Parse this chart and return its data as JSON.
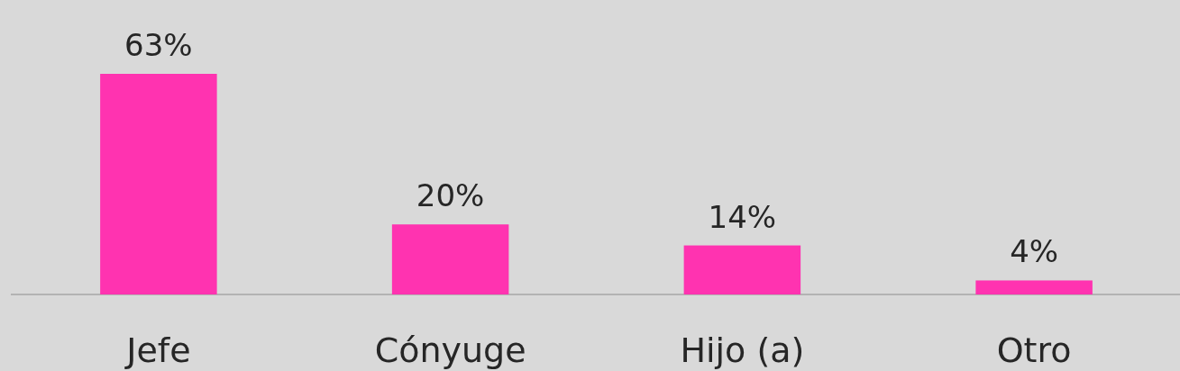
{
  "chart_data": {
    "type": "bar",
    "categories": [
      "Jefe",
      "Cónyuge",
      "Hijo (a)",
      "Otro"
    ],
    "values": [
      63,
      20,
      14,
      4
    ],
    "value_labels": [
      "63%",
      "20%",
      "14%",
      "4%"
    ],
    "color": "#ff33b0"
  }
}
